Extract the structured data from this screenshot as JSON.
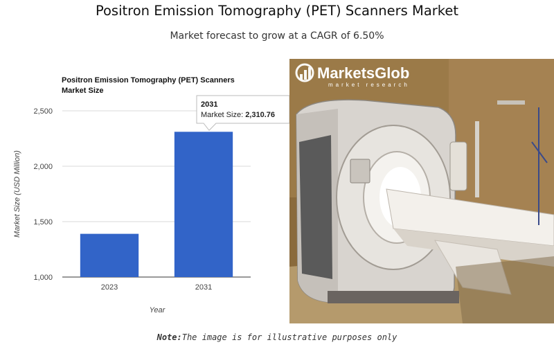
{
  "header": {
    "title": "Positron Emission Tomography (PET) Scanners Market",
    "subtitle": "Market forecast to grow at a CAGR of 6.50%"
  },
  "chart_data": {
    "type": "bar",
    "title": "Positron Emission Tomography (PET) Scanners Market Size",
    "categories": [
      "2023",
      "2031"
    ],
    "values": [
      1390,
      2310.76
    ],
    "xlabel": "Year",
    "ylabel": "Market Size (USD Million)",
    "ylim": [
      1000,
      2500
    ],
    "yticks": [
      "1,000",
      "1,500",
      "2,000",
      "2,500"
    ],
    "bar_color": "#3264c8",
    "grid": true,
    "tooltip": {
      "category": "2031",
      "label": "Market Size: ",
      "value": "2,310.76"
    }
  },
  "photo": {
    "logo_text": "MarketsGlob",
    "logo_subtext": "market research",
    "subject": "pet-scanner-photo"
  },
  "footer": {
    "note_label": "Note:",
    "note_text": "The image is for illustrative purposes only"
  }
}
